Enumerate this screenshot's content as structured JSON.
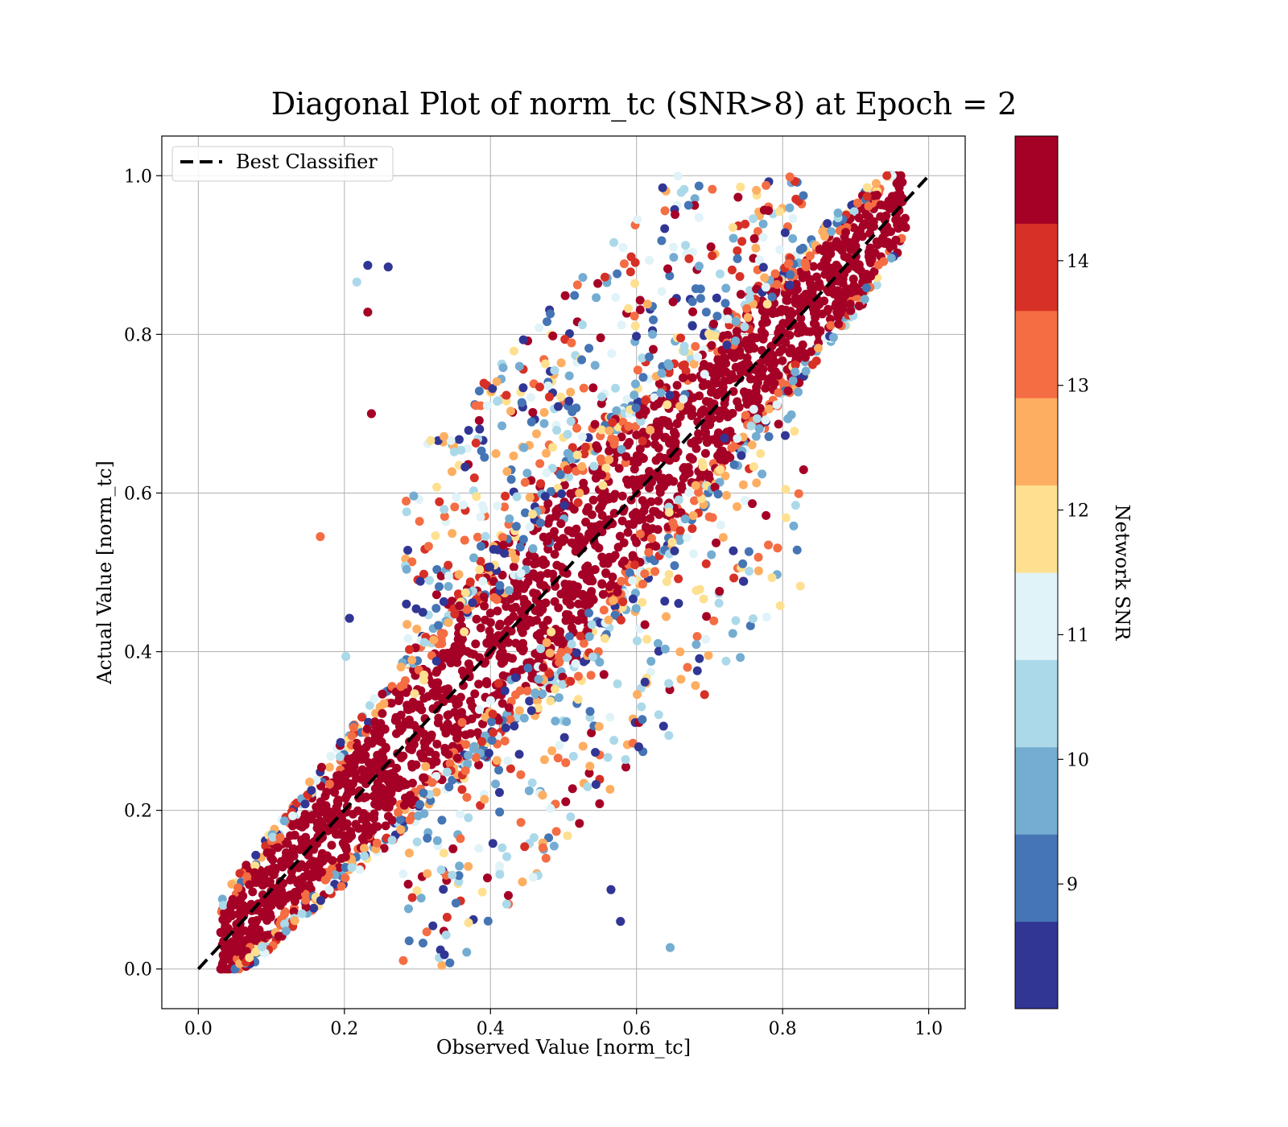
{
  "chart_data": {
    "type": "scatter",
    "title": "Diagonal Plot of norm_tc (SNR>8) at Epoch = 2",
    "xlabel": "Observed Value [norm_tc]",
    "ylabel": "Actual Value [norm_tc]",
    "xlim": [
      -0.05,
      1.05
    ],
    "ylim": [
      -0.05,
      1.05
    ],
    "xticks": [
      "0.0",
      "0.2",
      "0.4",
      "0.6",
      "0.8",
      "1.0"
    ],
    "yticks": [
      "0.0",
      "0.2",
      "0.4",
      "0.6",
      "0.8",
      "1.0"
    ],
    "grid": true,
    "legend": {
      "position": "top-left",
      "entries": [
        "Best Classifier"
      ]
    },
    "reference_line": {
      "name": "Best Classifier",
      "x": [
        0,
        1
      ],
      "y": [
        0,
        1
      ],
      "style": "dashed",
      "color": "#000000"
    },
    "colorbar": {
      "label": "Network SNR",
      "range": [
        8,
        15
      ],
      "ticks": [
        "9",
        "10",
        "11",
        "12",
        "13",
        "14"
      ],
      "colors": [
        "#313695",
        "#4575b4",
        "#74add1",
        "#abd9e9",
        "#e0f3f8",
        "#fee090",
        "#fdae61",
        "#f46d43",
        "#d73027",
        "#a50026"
      ]
    },
    "series": [
      {
        "x": 0.05,
        "y": 0.02,
        "snr": 14.5
      },
      {
        "x": 0.1,
        "y": 0.08,
        "snr": 14.5
      },
      {
        "x": 0.15,
        "y": 0.12,
        "snr": 14.5
      },
      {
        "x": 0.2,
        "y": 0.18,
        "snr": 14.5
      },
      {
        "x": 0.25,
        "y": 0.24,
        "snr": 14.5
      },
      {
        "x": 0.3,
        "y": 0.3,
        "snr": 14.5
      },
      {
        "x": 0.35,
        "y": 0.34,
        "snr": 14.5
      },
      {
        "x": 0.4,
        "y": 0.4,
        "snr": 14.5
      },
      {
        "x": 0.45,
        "y": 0.46,
        "snr": 14.5
      },
      {
        "x": 0.5,
        "y": 0.5,
        "snr": 14.5
      },
      {
        "x": 0.55,
        "y": 0.56,
        "snr": 14.5
      },
      {
        "x": 0.6,
        "y": 0.6,
        "snr": 14.5
      },
      {
        "x": 0.65,
        "y": 0.66,
        "snr": 14.5
      },
      {
        "x": 0.7,
        "y": 0.7,
        "snr": 14.5
      },
      {
        "x": 0.75,
        "y": 0.76,
        "snr": 14.5
      },
      {
        "x": 0.8,
        "y": 0.8,
        "snr": 14.5
      },
      {
        "x": 0.85,
        "y": 0.86,
        "snr": 14.5
      },
      {
        "x": 0.9,
        "y": 0.92,
        "snr": 14.5
      },
      {
        "x": 0.95,
        "y": 0.97,
        "snr": 14.5
      },
      {
        "x": 0.167,
        "y": 0.545,
        "snr": 13.2
      },
      {
        "x": 0.207,
        "y": 0.442,
        "snr": 8.5
      },
      {
        "x": 0.232,
        "y": 0.828,
        "snr": 14.5
      },
      {
        "x": 0.237,
        "y": 0.7,
        "snr": 14.5
      },
      {
        "x": 0.603,
        "y": 0.28,
        "snr": 8.5
      },
      {
        "x": 0.682,
        "y": 0.477,
        "snr": 12.0
      },
      {
        "x": 0.646,
        "y": 0.027,
        "snr": 9.5
      },
      {
        "x": 0.565,
        "y": 0.1,
        "snr": 8.5
      },
      {
        "x": 0.578,
        "y": 0.06,
        "snr": 8.5
      },
      {
        "x": 0.217,
        "y": 0.866,
        "snr": 10.5
      },
      {
        "x": 0.232,
        "y": 0.887,
        "snr": 8.5
      },
      {
        "x": 0.26,
        "y": 0.885,
        "snr": 8.5
      },
      {
        "x": 0.202,
        "y": 0.394,
        "snr": 10.5
      },
      {
        "x": 0.644,
        "y": 0.36,
        "snr": 10.5
      }
    ]
  }
}
